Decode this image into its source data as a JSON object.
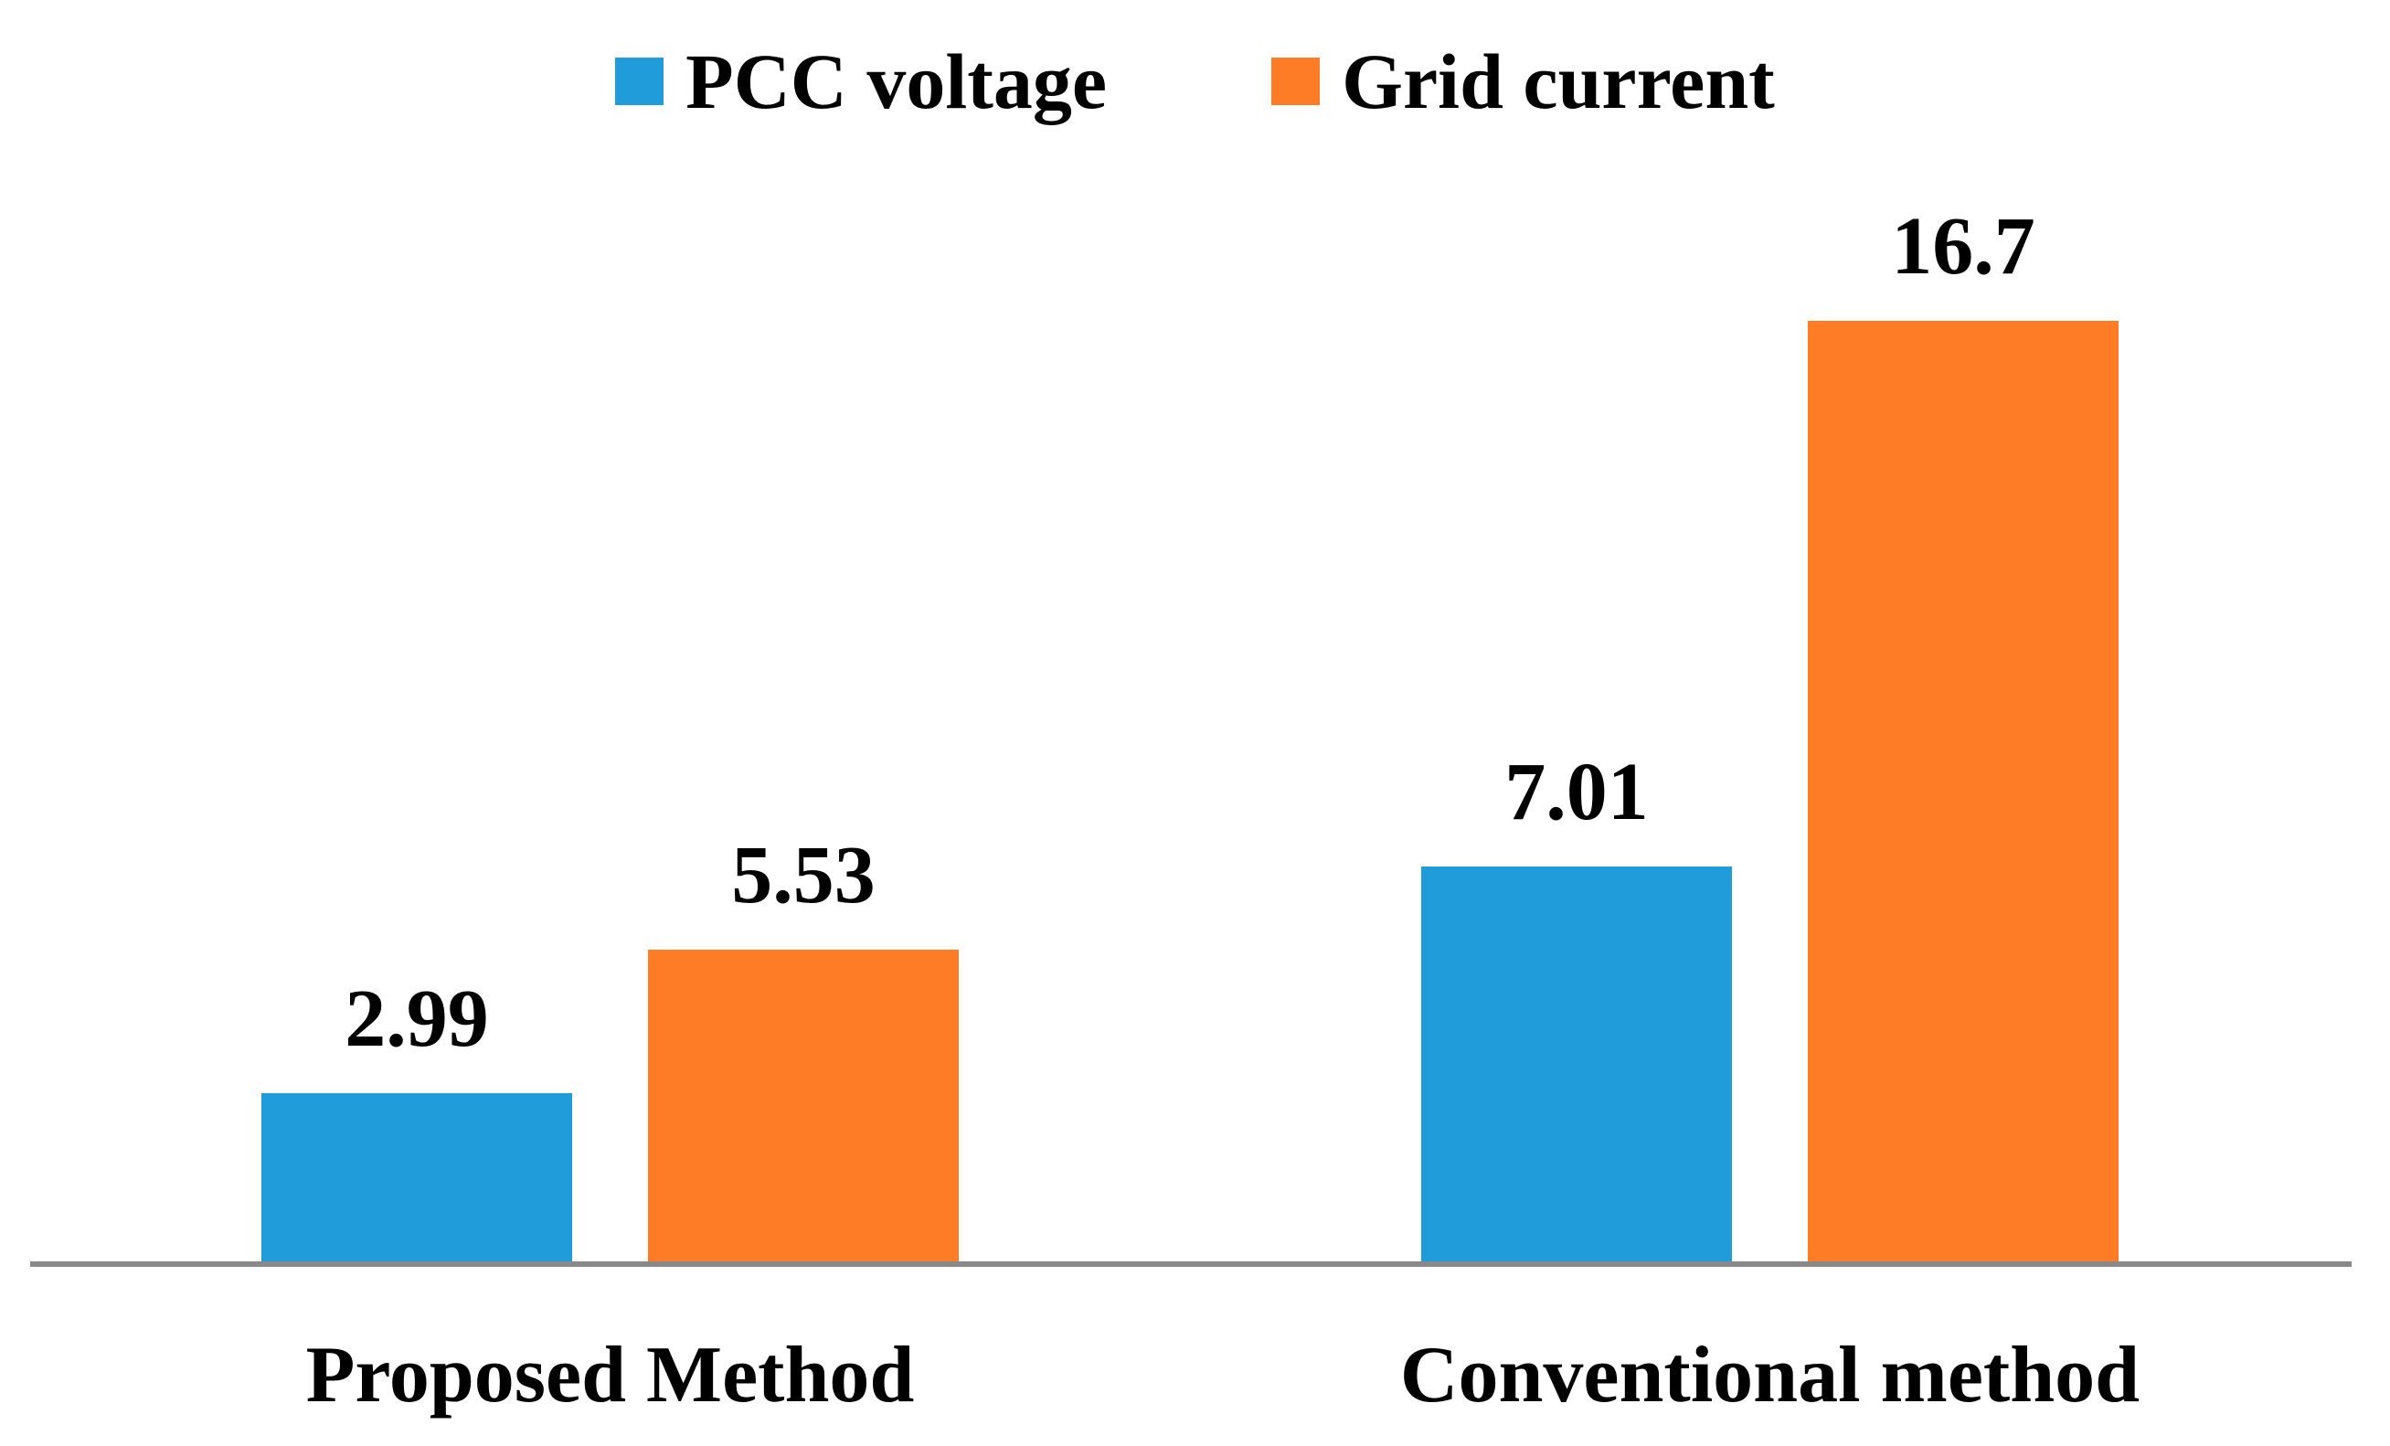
{
  "chart_data": {
    "type": "bar",
    "title": "",
    "xlabel": "",
    "ylabel": "",
    "categories": [
      "Proposed Method",
      "Conventional method"
    ],
    "series": [
      {
        "name": "PCC voltage",
        "color": "#1F9CD9",
        "values": [
          2.99,
          7.01
        ],
        "value_labels": [
          "2.99",
          "7.01"
        ]
      },
      {
        "name": "Grid current",
        "color": "#FD7C25",
        "values": [
          5.53,
          16.7
        ],
        "value_labels": [
          "5.53",
          "16.7"
        ]
      }
    ],
    "ylim": [
      0,
      18
    ],
    "grid": false,
    "y_axis_visible": false,
    "legend_position": "top-center",
    "axis_line_color": "#898989",
    "text_color": "#000000",
    "background_color": "#ffffff"
  }
}
